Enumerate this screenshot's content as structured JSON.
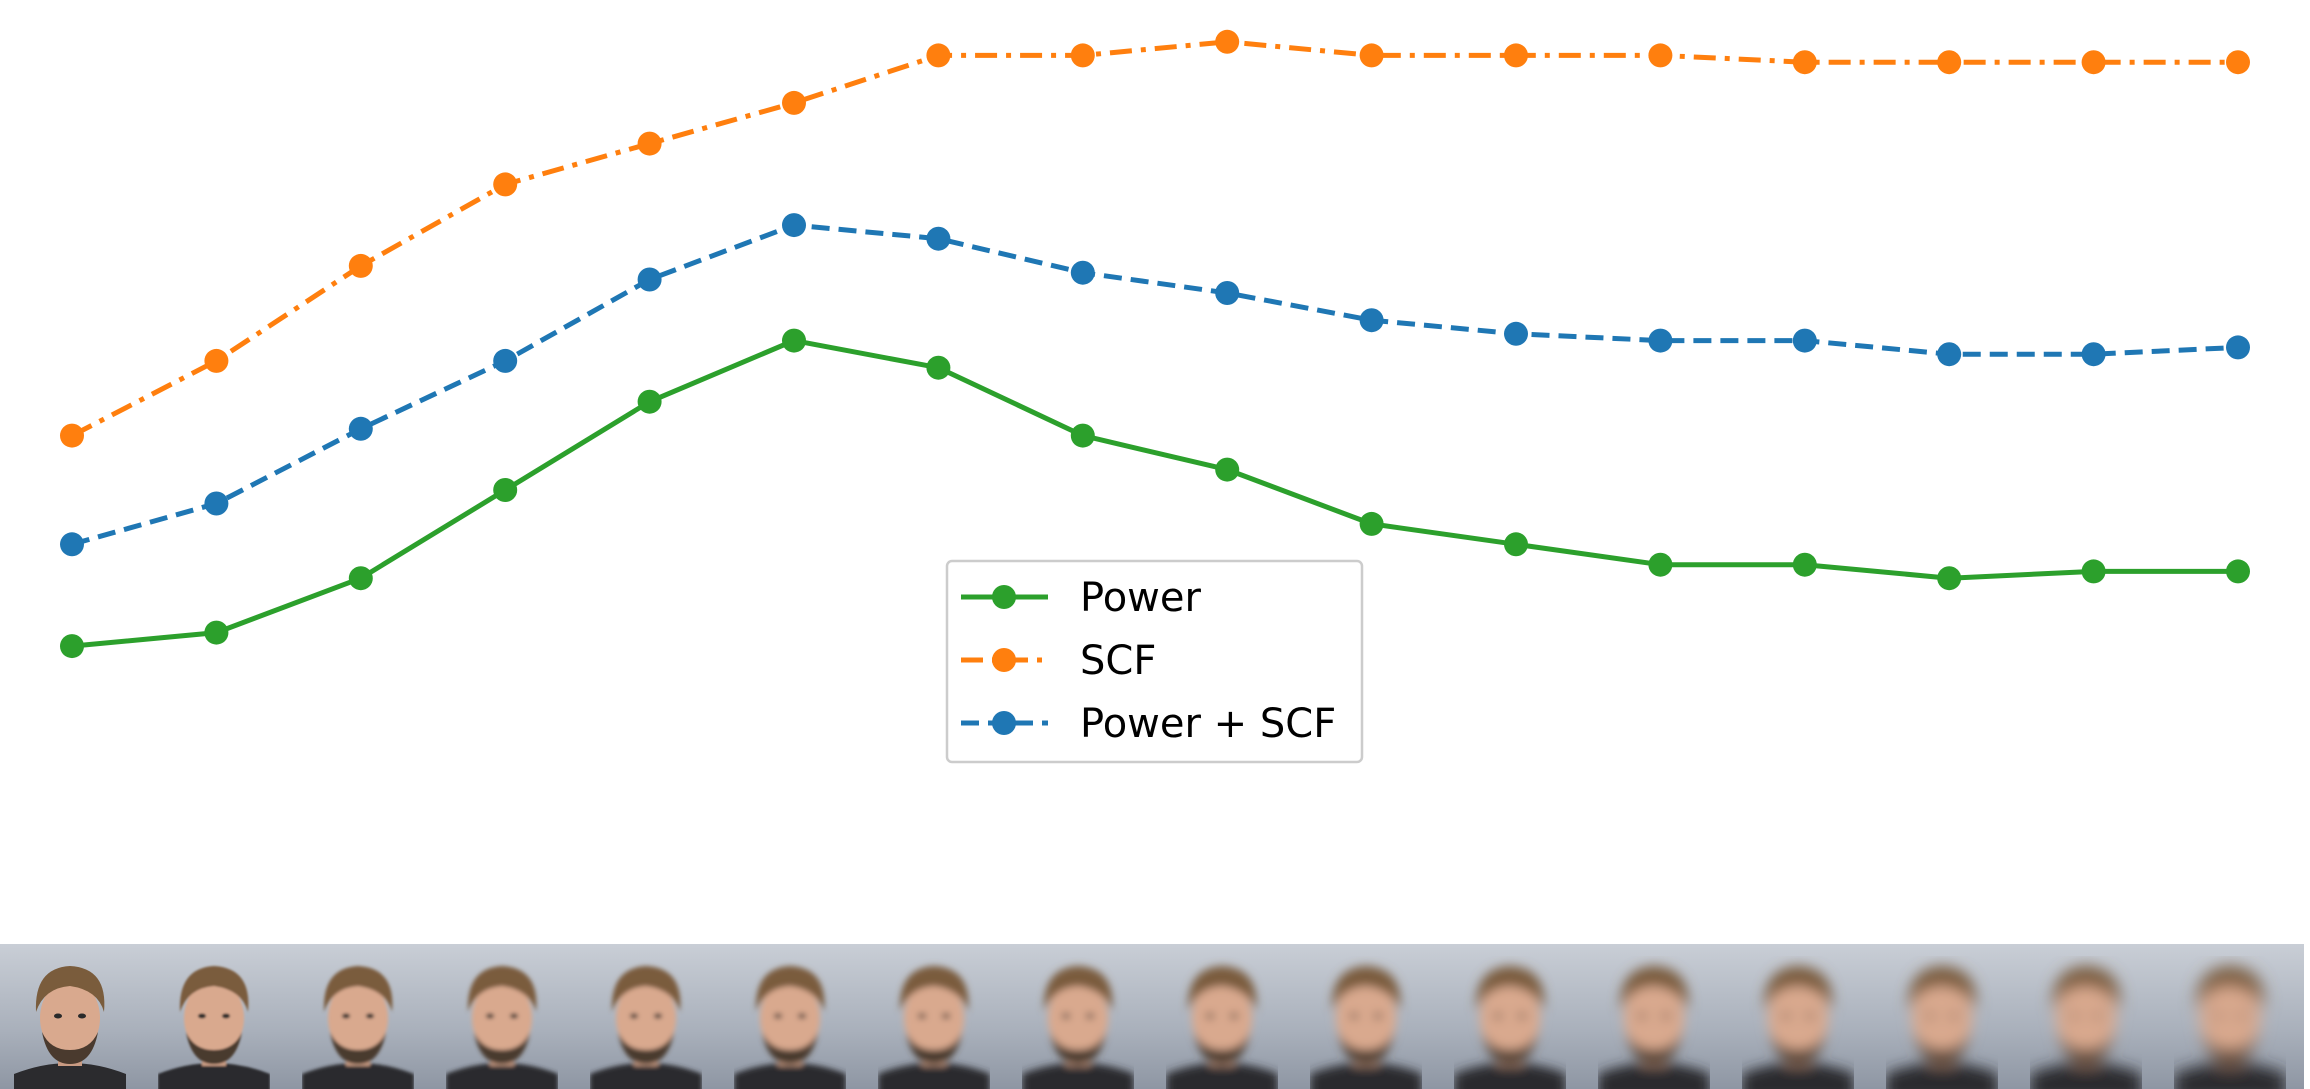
{
  "chart_data": {
    "type": "line",
    "x": [
      1,
      2,
      3,
      4,
      5,
      6,
      7,
      8,
      9,
      10,
      11,
      12,
      13,
      14,
      15,
      16
    ],
    "series": [
      {
        "name": "Power",
        "color": "#2ca02c",
        "linestyle": "solid",
        "values": [
          0.5,
          0.52,
          0.6,
          0.73,
          0.86,
          0.95,
          0.91,
          0.81,
          0.76,
          0.68,
          0.65,
          0.62,
          0.62,
          0.6,
          0.61,
          0.61
        ]
      },
      {
        "name": "SCF",
        "color": "#ff7f0e",
        "linestyle": "dashdot",
        "values": [
          0.81,
          0.92,
          1.06,
          1.18,
          1.24,
          1.3,
          1.37,
          1.37,
          1.39,
          1.37,
          1.37,
          1.37,
          1.36,
          1.36,
          1.36,
          1.36
        ]
      },
      {
        "name": "Power + SCF",
        "color": "#1f77b4",
        "linestyle": "dashed",
        "values": [
          0.65,
          0.71,
          0.82,
          0.92,
          1.04,
          1.12,
          1.1,
          1.05,
          1.02,
          0.98,
          0.96,
          0.95,
          0.95,
          0.93,
          0.93,
          0.94
        ]
      }
    ],
    "ylim": [
      0.35,
      1.4
    ],
    "xlim": [
      0.5,
      16.5
    ],
    "legend": {
      "placement": "center",
      "entries": [
        "Power",
        "SCF",
        "Power + SCF"
      ]
    },
    "grid": false,
    "axes_visible": false,
    "thumbnail_strip": {
      "count": 16,
      "blur_levels": [
        0,
        1,
        1.5,
        2,
        2.5,
        3,
        3.5,
        4,
        4.5,
        5,
        5.5,
        6,
        6.5,
        7,
        7.5,
        8
      ]
    }
  }
}
